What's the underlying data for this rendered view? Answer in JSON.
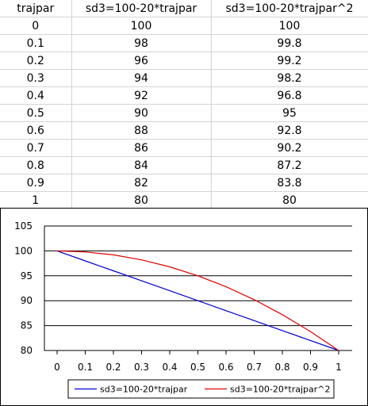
{
  "sheet": {
    "headers": [
      "trajpar",
      "sd3=100-20*trajpar",
      "sd3=100-20*trajpar^2"
    ],
    "rows": [
      [
        "0",
        "100",
        "100"
      ],
      [
        "0.1",
        "98",
        "99.8"
      ],
      [
        "0.2",
        "96",
        "99.2"
      ],
      [
        "0.3",
        "94",
        "98.2"
      ],
      [
        "0.4",
        "92",
        "96.8"
      ],
      [
        "0.5",
        "90",
        "95"
      ],
      [
        "0.6",
        "88",
        "92.8"
      ],
      [
        "0.7",
        "86",
        "90.2"
      ],
      [
        "0.8",
        "84",
        "87.2"
      ],
      [
        "0.9",
        "82",
        "83.8"
      ],
      [
        "1",
        "80",
        "80"
      ]
    ]
  },
  "chart_data": {
    "type": "line",
    "x": [
      0,
      0.1,
      0.2,
      0.3,
      0.4,
      0.5,
      0.6,
      0.7,
      0.8,
      0.9,
      1
    ],
    "series": [
      {
        "name": "sd3=100-20*trajpar",
        "color": "#0000cc",
        "values": [
          100,
          98,
          96,
          94,
          92,
          90,
          88,
          86,
          84,
          82,
          80
        ]
      },
      {
        "name": "sd3=100-20*trajpar^2",
        "color": "#e00000",
        "values": [
          100,
          99.8,
          99.2,
          98.2,
          96.8,
          95,
          92.8,
          90.2,
          87.2,
          83.8,
          80
        ]
      }
    ],
    "x_ticks": [
      "0",
      "0.1",
      "0.2",
      "0.3",
      "0.4",
      "0.5",
      "0.6",
      "0.7",
      "0.8",
      "0.9",
      "1"
    ],
    "y_ticks": [
      "80",
      "85",
      "90",
      "95",
      "100",
      "105"
    ],
    "xlim": [
      0,
      1
    ],
    "ylim": [
      80,
      105
    ],
    "grid": "horizontal major",
    "legend_position": "bottom",
    "title": "",
    "xlabel": "",
    "ylabel": ""
  }
}
